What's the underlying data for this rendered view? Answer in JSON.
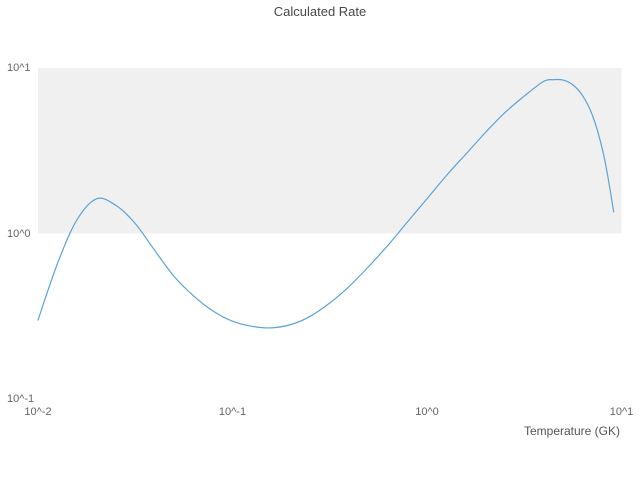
{
  "chart_data": {
    "type": "line",
    "title": "Calculated Rate",
    "xlabel": "Temperature (GK)",
    "ylabel": "",
    "x_scale": "log",
    "y_scale": "log",
    "xlim": [
      0.01,
      10
    ],
    "ylim": [
      0.1,
      10
    ],
    "grid": "off",
    "legend": "none",
    "x_ticks": [
      {
        "label": "10^-2",
        "value": 0.01
      },
      {
        "label": "10^-1",
        "value": 0.1
      },
      {
        "label": "10^0",
        "value": 1
      },
      {
        "label": "10^1",
        "value": 10
      }
    ],
    "y_ticks": [
      {
        "label": "10^-1",
        "value": 0.1
      },
      {
        "label": "10^0",
        "value": 1
      },
      {
        "label": "10^1",
        "value": 10
      }
    ],
    "decade_band": {
      "y_from": 1,
      "y_to": 10,
      "color": "#f0f0f0"
    },
    "line_color": "#5ba3d9",
    "series": [
      {
        "name": "calculated-rate",
        "x": [
          0.01,
          0.0126,
          0.0158,
          0.02,
          0.0251,
          0.0316,
          0.0398,
          0.0501,
          0.0631,
          0.0794,
          0.1,
          0.126,
          0.158,
          0.2,
          0.251,
          0.316,
          0.398,
          0.501,
          0.631,
          0.794,
          1.0,
          1.259,
          1.585,
          1.995,
          2.512,
          3.162,
          3.981,
          4.467,
          5.012,
          5.623,
          6.31,
          7.079,
          7.943,
          8.511,
          9.12
        ],
        "y": [
          0.3,
          0.66,
          1.2,
          1.62,
          1.48,
          1.15,
          0.79,
          0.55,
          0.42,
          0.34,
          0.295,
          0.275,
          0.269,
          0.282,
          0.316,
          0.38,
          0.479,
          0.631,
          0.851,
          1.175,
          1.622,
          2.24,
          3.02,
          4.07,
          5.37,
          6.76,
          8.3,
          8.5,
          8.45,
          7.9,
          6.8,
          5.2,
          3.3,
          2.2,
          1.35
        ]
      }
    ]
  }
}
